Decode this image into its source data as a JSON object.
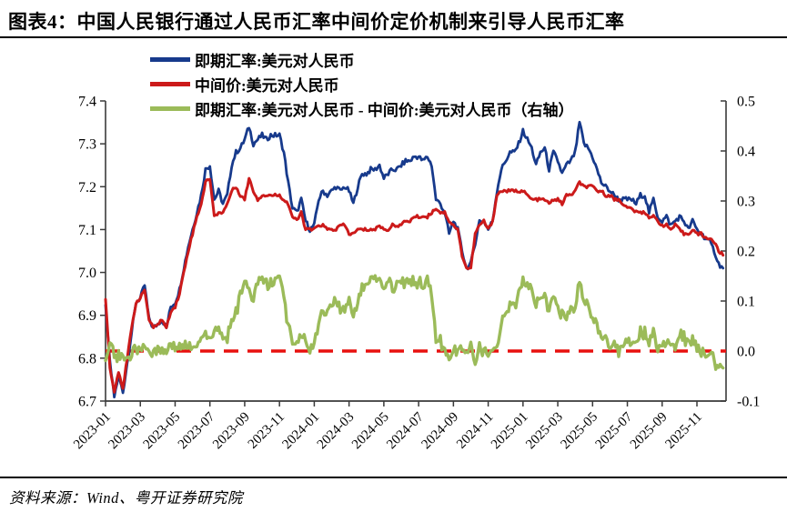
{
  "figure": {
    "title": "图表4：中国人民银行通过人民币汇率中间价定价机制来引导人民币汇率",
    "source": "资料来源：Wind、粤开证券研究院"
  },
  "chart_data": {
    "type": "line",
    "title": "图表4：中国人民银行通过人民币汇率中间价定价机制来引导人民币汇率",
    "legend_position": "top-left",
    "grid": false,
    "x_axis": {
      "unit": "month",
      "tick_interval_months": 2,
      "tick_labels": [
        "2023-01",
        "2023-03",
        "2023-05",
        "2023-07",
        "2023-09",
        "2023-11",
        "2024-01",
        "2024-03",
        "2024-05",
        "2024-07",
        "2024-09",
        "2024-11",
        "2025-01",
        "2025-03",
        "2025-05",
        "2025-07",
        "2025-09",
        "2025-11"
      ]
    },
    "left_axis": {
      "min": 6.7,
      "max": 7.4,
      "tick_step": 0.1,
      "tick_labels": [
        "6.7",
        "6.8",
        "6.9",
        "7.0",
        "7.1",
        "7.2",
        "7.3",
        "7.4"
      ]
    },
    "right_axis": {
      "min": -0.1,
      "max": 0.5,
      "tick_step": 0.1,
      "tick_labels": [
        "-0.1",
        "0.0",
        "0.1",
        "0.2",
        "0.3",
        "0.4",
        "0.5"
      ]
    },
    "x_start": 0,
    "x_step": 0.25,
    "x_note": "x in months since 2023-01, one point per week (4 per month)",
    "series": [
      {
        "name": "即期汇率:美元对人民币",
        "axis": "left",
        "color": "#173A8C",
        "values": [
          6.92,
          6.79,
          6.71,
          6.76,
          6.72,
          6.79,
          6.86,
          6.93,
          6.94,
          6.97,
          6.89,
          6.87,
          6.88,
          6.89,
          6.87,
          6.92,
          6.93,
          6.96,
          7.01,
          7.06,
          7.1,
          7.14,
          7.18,
          7.24,
          7.25,
          7.17,
          7.19,
          7.16,
          7.18,
          7.25,
          7.28,
          7.29,
          7.31,
          7.34,
          7.3,
          7.31,
          7.32,
          7.31,
          7.32,
          7.32,
          7.32,
          7.28,
          7.21,
          7.15,
          7.14,
          7.17,
          7.12,
          7.1,
          7.11,
          7.17,
          7.19,
          7.18,
          7.19,
          7.2,
          7.19,
          7.2,
          7.19,
          7.16,
          7.2,
          7.23,
          7.23,
          7.24,
          7.24,
          7.25,
          7.22,
          7.23,
          7.24,
          7.24,
          7.25,
          7.26,
          7.26,
          7.27,
          7.27,
          7.26,
          7.27,
          7.25,
          7.17,
          7.16,
          7.14,
          7.09,
          7.12,
          7.1,
          7.05,
          7.01,
          7.02,
          7.07,
          7.12,
          7.12,
          7.1,
          7.12,
          7.19,
          7.24,
          7.26,
          7.28,
          7.28,
          7.3,
          7.33,
          7.31,
          7.29,
          7.25,
          7.28,
          7.29,
          7.24,
          7.28,
          7.26,
          7.23,
          7.25,
          7.26,
          7.28,
          7.35,
          7.3,
          7.29,
          7.27,
          7.24,
          7.21,
          7.2,
          7.19,
          7.18,
          7.17,
          7.17,
          7.17,
          7.17,
          7.16,
          7.18,
          7.18,
          7.14,
          7.17,
          7.13,
          7.12,
          7.13,
          7.11,
          7.12,
          7.13,
          7.12,
          7.1,
          7.12,
          7.1,
          7.09,
          7.08,
          7.07,
          7.05,
          7.02,
          7.01
        ]
      },
      {
        "name": "中间价:美元对人民币",
        "axis": "left",
        "color": "#CC1A1A",
        "values": [
          6.94,
          6.78,
          6.72,
          6.77,
          6.73,
          6.8,
          6.87,
          6.93,
          6.94,
          6.96,
          6.89,
          6.87,
          6.88,
          6.89,
          6.87,
          6.91,
          6.92,
          6.95,
          7.0,
          7.05,
          7.09,
          7.13,
          7.16,
          7.21,
          7.22,
          7.13,
          7.14,
          7.14,
          7.16,
          7.19,
          7.2,
          7.18,
          7.17,
          7.22,
          7.19,
          7.17,
          7.18,
          7.18,
          7.18,
          7.18,
          7.18,
          7.17,
          7.16,
          7.13,
          7.12,
          7.14,
          7.1,
          7.1,
          7.1,
          7.11,
          7.11,
          7.1,
          7.1,
          7.1,
          7.11,
          7.11,
          7.09,
          7.09,
          7.1,
          7.1,
          7.1,
          7.1,
          7.1,
          7.11,
          7.1,
          7.1,
          7.11,
          7.11,
          7.11,
          7.12,
          7.12,
          7.13,
          7.13,
          7.13,
          7.13,
          7.14,
          7.15,
          7.14,
          7.14,
          7.12,
          7.11,
          7.1,
          7.04,
          7.01,
          7.01,
          7.09,
          7.11,
          7.12,
          7.1,
          7.12,
          7.18,
          7.19,
          7.19,
          7.19,
          7.19,
          7.19,
          7.19,
          7.18,
          7.17,
          7.17,
          7.17,
          7.17,
          7.16,
          7.17,
          7.17,
          7.16,
          7.18,
          7.18,
          7.19,
          7.21,
          7.2,
          7.2,
          7.2,
          7.19,
          7.19,
          7.18,
          7.18,
          7.17,
          7.17,
          7.16,
          7.15,
          7.15,
          7.14,
          7.14,
          7.14,
          7.13,
          7.13,
          7.12,
          7.11,
          7.11,
          7.1,
          7.11,
          7.1,
          7.09,
          7.09,
          7.1,
          7.09,
          7.09,
          7.08,
          7.08,
          7.07,
          7.05,
          7.04
        ]
      },
      {
        "name": "即期汇率:美元对人民币 - 中间价:美元对人民币（右轴）",
        "axis": "right",
        "color": "#9BBB59",
        "derived": "series[0].values - series[1].values"
      }
    ],
    "zero_line": {
      "axis": "right",
      "value": 0.0,
      "style": "dashed",
      "color": "#E8100E"
    },
    "render": {
      "upsample": 3,
      "noise_spot": 0.006,
      "noise_fixing": 0.0035,
      "noise_spread": 0.01
    }
  }
}
